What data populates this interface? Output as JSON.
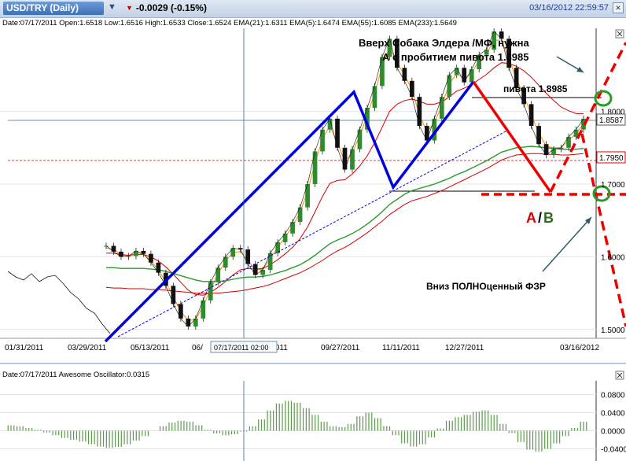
{
  "window": {
    "title": "USD/TRY (Daily)",
    "change": "-0.0029 (-0.15%)",
    "datetime": "03/16/2012 22:59:57"
  },
  "info_bar": "Date:07/17/2011 Open:1.6518 Low:1.6516 High:1.6533 Close:1.6524 EMA(21):1.6311 EMA(5):1.6474 EMA(55):1.6085 EMA(233):1.5649",
  "oscillator_info": "Date:07/17/2011 Awesome Oscillator:0.0315",
  "crosshair_label": "07/17/2011 02:00",
  "annotations": {
    "top": [
      "Вверх Собака Элдера /МФ, нужна",
      "А с пробитием пивота 1.8985"
    ],
    "pivot": "пивота 1.8985",
    "a": "A",
    "slash": "/",
    "b": "B",
    "bottom": "Вниз ПОЛНОценный ФЗР"
  },
  "colors": {
    "price": "#000000",
    "up_candle": "#2e8b2e",
    "ema5": "#ff8c00",
    "ema21": "#d40000",
    "ema55": "#2a9a2a",
    "ema233": "#d40000",
    "pattern": "#0000e0",
    "forecast": "#ee0000",
    "circle": "#2a9a2a",
    "oscillator": "#5e9a4e",
    "annotation_a": "#d40000",
    "annotation_b": "#2e6b1e"
  },
  "chart_data": [
    {
      "type": "line",
      "x_ticks": [
        "01/31/2011",
        "03/29/2011",
        "05/13/2011",
        "06/",
        "2/2011",
        "09/27/2011",
        "11/11/2011",
        "12/27/2011",
        "03/16/2012"
      ],
      "y_ticks": [
        "1.5000",
        "1.6000",
        "1.7000",
        "1.8000"
      ],
      "ylim": [
        1.49,
        1.91
      ],
      "price_labels": [
        "1.8587",
        "1.7950"
      ],
      "series": [
        {
          "values": [
            1.615,
            1.607,
            1.6,
            1.601,
            1.608,
            1.604,
            1.592,
            1.578,
            1.56,
            1.535,
            1.515,
            1.504,
            1.515,
            1.54,
            1.565,
            1.585,
            1.6,
            1.612,
            1.61,
            1.59,
            1.575,
            1.582,
            1.605,
            1.62,
            1.632,
            1.648,
            1.668,
            1.7,
            1.745,
            1.775,
            1.79,
            1.75,
            1.72,
            1.748,
            1.775,
            1.805,
            1.835,
            1.875,
            1.9,
            1.86,
            1.842,
            1.82,
            1.78,
            1.76,
            1.79,
            1.82,
            1.85,
            1.86,
            1.84,
            1.858,
            1.878,
            1.885,
            1.91,
            1.9,
            1.86,
            1.832,
            1.81,
            1.78,
            1.755,
            1.74,
            1.748,
            1.75,
            1.765,
            1.775,
            1.79
          ]
        },
        {
          "name": "EMA(5)",
          "values": [
            1.612,
            1.61,
            1.603,
            1.601,
            1.605,
            1.604,
            1.594,
            1.582,
            1.565,
            1.545,
            1.525,
            1.512,
            1.514,
            1.532,
            1.555,
            1.577,
            1.594,
            1.606,
            1.607,
            1.595,
            1.582,
            1.583,
            1.598,
            1.613,
            1.627,
            1.642,
            1.661,
            1.69,
            1.729,
            1.762,
            1.78,
            1.757,
            1.731,
            1.744,
            1.766,
            1.795,
            1.825,
            1.862,
            1.888,
            1.867,
            1.85,
            1.83,
            1.795,
            1.772,
            1.784,
            1.808,
            1.838,
            1.852,
            1.845,
            1.853,
            1.87,
            1.879,
            1.898,
            1.898,
            1.872,
            1.845,
            1.822,
            1.795,
            1.77,
            1.752,
            1.75,
            1.75,
            1.76,
            1.77,
            1.783
          ]
        },
        {
          "name": "EMA(21)",
          "values": [
            1.605,
            1.605,
            1.603,
            1.602,
            1.603,
            1.603,
            1.6,
            1.594,
            1.586,
            1.576,
            1.565,
            1.554,
            1.548,
            1.547,
            1.551,
            1.558,
            1.566,
            1.575,
            1.582,
            1.584,
            1.583,
            1.584,
            1.589,
            1.596,
            1.604,
            1.613,
            1.625,
            1.641,
            1.662,
            1.683,
            1.701,
            1.705,
            1.706,
            1.714,
            1.725,
            1.739,
            1.757,
            1.778,
            1.8,
            1.81,
            1.815,
            1.817,
            1.814,
            1.81,
            1.81,
            1.813,
            1.82,
            1.828,
            1.832,
            1.837,
            1.844,
            1.851,
            1.86,
            1.867,
            1.866,
            1.862,
            1.856,
            1.847,
            1.836,
            1.825,
            1.815,
            1.806,
            1.801,
            1.797,
            1.797
          ]
        },
        {
          "name": "EMA(55)",
          "values": [
            1.585,
            1.585,
            1.584,
            1.584,
            1.584,
            1.584,
            1.583,
            1.582,
            1.58,
            1.577,
            1.574,
            1.571,
            1.568,
            1.566,
            1.566,
            1.566,
            1.567,
            1.569,
            1.571,
            1.572,
            1.572,
            1.573,
            1.575,
            1.578,
            1.581,
            1.585,
            1.589,
            1.595,
            1.602,
            1.61,
            1.618,
            1.623,
            1.627,
            1.632,
            1.638,
            1.645,
            1.653,
            1.662,
            1.672,
            1.679,
            1.686,
            1.691,
            1.694,
            1.697,
            1.7,
            1.704,
            1.708,
            1.713,
            1.717,
            1.722,
            1.727,
            1.732,
            1.738,
            1.744,
            1.747,
            1.75,
            1.751,
            1.752,
            1.751,
            1.75,
            1.749,
            1.748,
            1.748,
            1.748,
            1.749
          ]
        },
        {
          "name": "EMA(233)",
          "values": [
            1.558,
            1.557,
            1.557,
            1.556,
            1.556,
            1.556,
            1.555,
            1.555,
            1.554,
            1.553,
            1.552,
            1.551,
            1.55,
            1.55,
            1.55,
            1.55,
            1.551,
            1.552,
            1.553,
            1.555,
            1.557,
            1.559,
            1.562,
            1.566,
            1.57,
            1.574,
            1.578,
            1.583,
            1.589,
            1.595,
            1.602,
            1.608,
            1.613,
            1.619,
            1.626,
            1.633,
            1.641,
            1.649,
            1.658,
            1.665,
            1.672,
            1.677,
            1.68,
            1.683,
            1.687,
            1.691,
            1.696,
            1.701,
            1.706,
            1.711,
            1.716,
            1.721,
            1.727,
            1.733,
            1.737,
            1.74,
            1.741,
            1.742,
            1.742,
            1.741,
            1.741,
            1.74,
            1.74,
            1.741,
            1.742
          ]
        }
      ]
    },
    {
      "type": "bar",
      "title": "Awesome Oscillator",
      "y_ticks": [
        "0.0800",
        "0.0400",
        "0.0000",
        "-0.0400"
      ],
      "ylim": [
        -0.06,
        0.1
      ],
      "values": [
        0.012,
        0.01,
        0.006,
        0.002,
        -0.004,
        -0.01,
        -0.016,
        -0.02,
        -0.024,
        -0.03,
        -0.035,
        -0.038,
        -0.036,
        -0.03,
        -0.022,
        -0.012,
        0.0,
        0.01,
        0.018,
        0.022,
        0.02,
        0.012,
        0.002,
        -0.006,
        -0.01,
        -0.008,
        -0.002,
        0.01,
        0.025,
        0.045,
        0.06,
        0.066,
        0.062,
        0.05,
        0.035,
        0.02,
        0.01,
        0.008,
        0.015,
        0.032,
        0.04,
        0.028,
        0.01,
        -0.01,
        -0.028,
        -0.035,
        -0.03,
        -0.015,
        0.005,
        0.022,
        0.03,
        0.035,
        0.042,
        0.045,
        0.035,
        0.015,
        -0.005,
        -0.025,
        -0.042,
        -0.046,
        -0.04,
        -0.028,
        -0.012,
        0.006,
        0.02
      ]
    }
  ]
}
